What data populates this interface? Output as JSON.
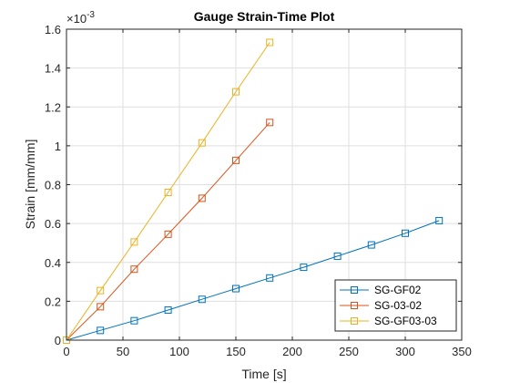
{
  "chart_data": {
    "type": "line",
    "title": "Gauge Strain-Time Plot",
    "xlabel": "Time [s]",
    "ylabel": "Strain [mm/mm]",
    "y_multiplier_label": "×10",
    "y_exponent_label": "-3",
    "xlim": [
      0,
      350
    ],
    "ylim": [
      0,
      1.6
    ],
    "x_ticks": [
      0,
      50,
      100,
      150,
      200,
      250,
      300,
      350
    ],
    "x_tick_labels": [
      "0",
      "50",
      "100",
      "150",
      "200",
      "250",
      "300",
      "350"
    ],
    "y_ticks": [
      0,
      0.2,
      0.4,
      0.6,
      0.8,
      1.0,
      1.2,
      1.4,
      1.6
    ],
    "y_tick_labels": [
      "0",
      "0.2",
      "0.4",
      "0.6",
      "0.8",
      "1",
      "1.2",
      "1.4",
      "1.6"
    ],
    "grid": true,
    "legend_position": "bottom-right",
    "series": [
      {
        "name": "SG-GF02",
        "color": "#0072BD",
        "x": [
          0,
          30,
          60,
          90,
          120,
          150,
          180,
          210,
          240,
          270,
          300,
          330
        ],
        "y": [
          0.0,
          0.05,
          0.1,
          0.155,
          0.21,
          0.265,
          0.32,
          0.375,
          0.432,
          0.49,
          0.55,
          0.615
        ]
      },
      {
        "name": "SG-03-02",
        "color": "#D95319",
        "x": [
          0,
          30,
          60,
          90,
          120,
          150,
          180
        ],
        "y": [
          0.0,
          0.172,
          0.365,
          0.545,
          0.73,
          0.925,
          1.12
        ]
      },
      {
        "name": "SG-GF03-03",
        "color": "#EDB120",
        "x": [
          0,
          30,
          60,
          90,
          120,
          150,
          180
        ],
        "y": [
          0.0,
          0.255,
          0.505,
          0.76,
          1.015,
          1.278,
          1.532
        ]
      }
    ]
  }
}
